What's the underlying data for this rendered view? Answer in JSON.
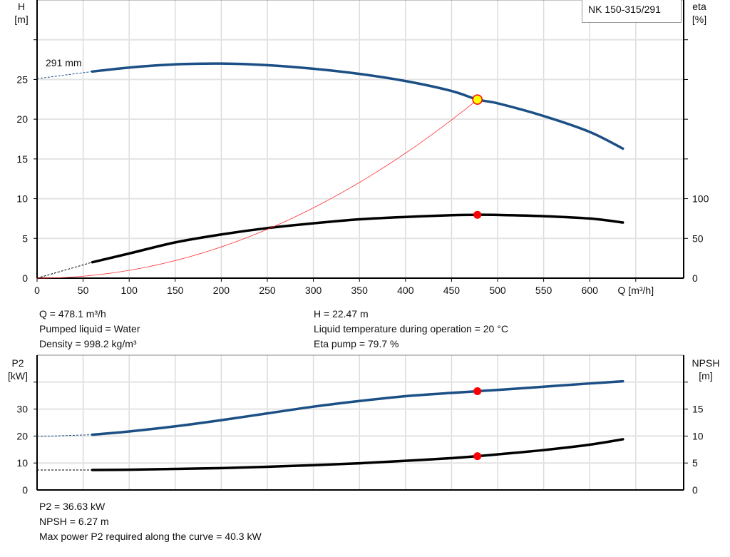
{
  "chart_data": [
    {
      "type": "line",
      "title": "NK 150-315/291",
      "xlabel": "Q [m³/h]",
      "ylabel": "H\n[m]",
      "ylabel_right": "eta\n[%]",
      "xlim": [
        0,
        702
      ],
      "ylim": [
        0,
        35
      ],
      "ylim_right": [
        0,
        350
      ],
      "x_ticks": [
        0,
        50,
        100,
        150,
        200,
        250,
        300,
        350,
        400,
        450,
        500,
        550,
        600
      ],
      "y_ticks": [
        0,
        5,
        10,
        15,
        20,
        25
      ],
      "y_ticks_right": [
        0,
        50,
        100
      ],
      "grid": true,
      "annotation": "291 mm",
      "series": [
        {
          "name": "H",
          "axis": "left",
          "color": "#1b4f85",
          "x": [
            60,
            100,
            150,
            200,
            250,
            300,
            350,
            400,
            450,
            478.1,
            500,
            550,
            600,
            636
          ],
          "y": [
            26.0,
            26.5,
            26.9,
            27.0,
            26.8,
            26.35,
            25.7,
            24.8,
            23.55,
            22.47,
            22.0,
            20.4,
            18.4,
            16.3
          ],
          "extrapolated": {
            "x": [
              0,
              60
            ],
            "y": [
              25.1,
              26.0
            ]
          }
        },
        {
          "name": "eta",
          "axis": "right",
          "color": "#000000",
          "x": [
            60,
            100,
            150,
            200,
            250,
            300,
            350,
            400,
            450,
            478.1,
            500,
            550,
            600,
            636
          ],
          "y": [
            20,
            31,
            45,
            55,
            63,
            69,
            74,
            77,
            79.2,
            79.7,
            79.5,
            78,
            75,
            70
          ],
          "extrapolated": {
            "x": [
              0,
              60
            ],
            "y": [
              0,
              20
            ]
          }
        },
        {
          "name": "system curve",
          "axis": "left",
          "color": "#ff3030",
          "type": "quadratic",
          "x": [
            0,
            478.1
          ],
          "y": [
            0,
            22.47
          ]
        }
      ],
      "duty_point": {
        "Q": 478.1,
        "H": 22.47,
        "eta": 79.7
      }
    },
    {
      "type": "line",
      "xlim": [
        0,
        702
      ],
      "ylim": [
        0,
        50
      ],
      "ylim_right": [
        0,
        25
      ],
      "ylabel": "P2\n[kW]",
      "ylabel_right": "NPSH\n[m]",
      "y_ticks": [
        0,
        10,
        20,
        30
      ],
      "y_ticks_right": [
        0,
        5,
        10,
        15
      ],
      "grid": true,
      "series": [
        {
          "name": "P2",
          "axis": "left",
          "color": "#1b4f85",
          "x": [
            60,
            100,
            150,
            200,
            250,
            300,
            350,
            400,
            450,
            478.1,
            500,
            550,
            600,
            636
          ],
          "y": [
            20.5,
            21.7,
            23.6,
            25.9,
            28.4,
            30.9,
            33.0,
            34.8,
            36.0,
            36.63,
            37.1,
            38.3,
            39.5,
            40.3
          ],
          "extrapolated": {
            "x": [
              0,
              60
            ],
            "y": [
              19.8,
              20.5
            ]
          }
        },
        {
          "name": "NPSH",
          "axis": "right",
          "color": "#000000",
          "x": [
            60,
            100,
            150,
            200,
            250,
            300,
            350,
            400,
            450,
            478.1,
            500,
            550,
            600,
            636
          ],
          "y": [
            3.7,
            3.75,
            3.9,
            4.05,
            4.3,
            4.6,
            4.95,
            5.4,
            5.9,
            6.27,
            6.6,
            7.4,
            8.4,
            9.4
          ],
          "extrapolated": {
            "x": [
              0,
              60
            ],
            "y": [
              3.7,
              3.7
            ]
          }
        }
      ],
      "duty_point": {
        "Q": 478.1,
        "P2": 36.63,
        "NPSH": 6.27
      }
    }
  ],
  "info_top": {
    "q": "Q = 478.1 m³/h",
    "liquid": "Pumped liquid = Water",
    "density": "Density = 998.2 kg/m³",
    "h": "H = 22.47 m",
    "temp": "Liquid temperature during operation = 20 °C",
    "eta": "Eta pump = 79.7 %"
  },
  "info_bottom": {
    "p2": "P2 = 36.63 kW",
    "npsh": "NPSH = 6.27 m",
    "max": "Max power P2 required along the curve = 40.3 kW"
  }
}
